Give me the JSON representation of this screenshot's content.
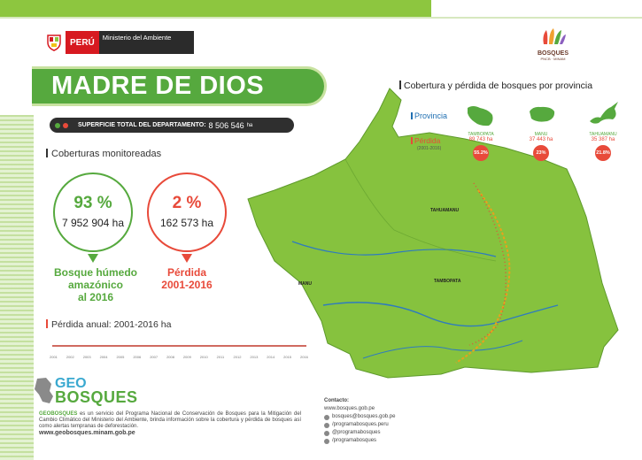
{
  "header": {
    "gov_country": "PERÚ",
    "gov_ministry": "Ministerio del Ambiente",
    "bosques_logo_title": "BOSQUES",
    "bosques_logo_sub": "PNCB · MINAM"
  },
  "title": "MADRE DE DIOS",
  "surface": {
    "label": "SUPERFICIE TOTAL DEL DEPARTAMENTO:",
    "value": "8 506 546",
    "unit": "ha"
  },
  "coverage": {
    "heading": "Coberturas monitoreadas",
    "forest": {
      "percent": "93 %",
      "area": "7 952 904 ha",
      "caption_lines": [
        "Bosque húmedo",
        "amazónico",
        "al 2016"
      ]
    },
    "loss": {
      "percent": "2 %",
      "area": "162 573 ha",
      "caption_lines": [
        "Pérdida",
        "2001-2016"
      ]
    }
  },
  "annual_loss": {
    "heading": "Pérdida anual: 2001-2016 ha",
    "years": [
      "2001",
      "2002",
      "2003",
      "2004",
      "2005",
      "2006",
      "2007",
      "2008",
      "2009",
      "2010",
      "2011",
      "2012",
      "2013",
      "2014",
      "2015",
      "2016"
    ]
  },
  "provinces": {
    "heading": "Cobertura y pérdida de bosques por provincia",
    "legend_province": "Provincia",
    "legend_loss": "Pérdida",
    "legend_loss_period": "(2001-2016)",
    "items": [
      {
        "name": "TAMBOPATA",
        "loss_ha": "89 743 ha",
        "loss_pct": "55.2%"
      },
      {
        "name": "MANU",
        "loss_ha": "37 443 ha",
        "loss_pct": "23%"
      },
      {
        "name": "TAHUAMANU",
        "loss_ha": "35 387 ha",
        "loss_pct": "21.8%"
      }
    ]
  },
  "map_labels": {
    "tahuamanu": "TAHUAMANU",
    "tambopata": "TAMBOPATA",
    "manu": "MANU"
  },
  "geo": {
    "logo_top": "GEO",
    "logo_bottom": "BOSQUES",
    "brand": "GEOBOSQUES",
    "description": "es un servicio del Programa Nacional de Conservación de Bosques para la Mitigación del Cambio Climático del Ministerio del Ambiente, brinda información sobre la cobertura y pérdida de bosques así como alertas tempranas de deforestación.",
    "website": "www.geobosques.minam.gob.pe"
  },
  "contact": {
    "heading": "Contacto:",
    "items": [
      "www.bosques.gob.pe",
      "bosques@bosques.gob.pe",
      "/programabosques.peru",
      "@programabosques",
      "/programabosques"
    ]
  },
  "colors": {
    "green": "#56a93e",
    "light_green": "#8dc63f",
    "red": "#e84a3a",
    "blue": "#1f6fb2"
  }
}
